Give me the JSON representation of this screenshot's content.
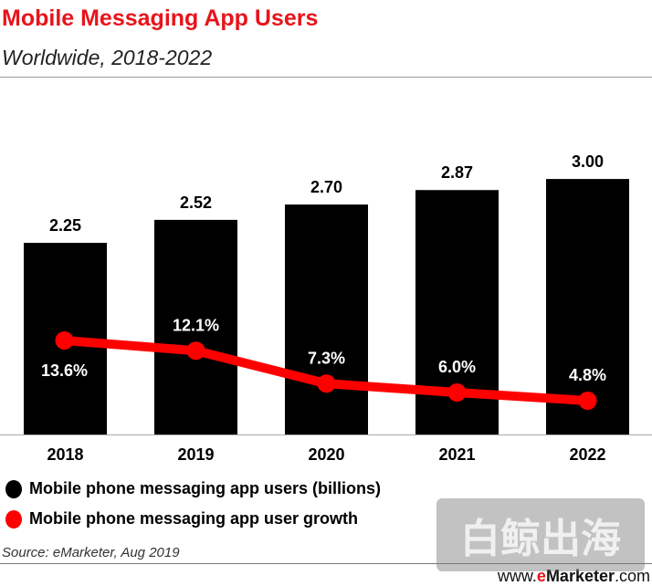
{
  "header": {
    "title": "Mobile Messaging App Users",
    "subtitle": "Worldwide, 2018-2022"
  },
  "chart_data": {
    "type": "bar+line",
    "categories": [
      "2018",
      "2019",
      "2020",
      "2021",
      "2022"
    ],
    "series": [
      {
        "name": "Mobile phone messaging app users (billions)",
        "type": "bar",
        "values": [
          2.25,
          2.52,
          2.7,
          2.87,
          3.0
        ],
        "labels": [
          "2.25",
          "2.52",
          "2.70",
          "2.87",
          "3.00"
        ],
        "color": "#000000"
      },
      {
        "name": "Mobile phone messaging app user growth",
        "type": "line",
        "values": [
          13.6,
          12.1,
          7.3,
          6.0,
          4.8
        ],
        "labels": [
          "13.6%",
          "12.1%",
          "7.3%",
          "6.0%",
          "4.8%"
        ],
        "color": "#ff0000"
      }
    ],
    "grid": false,
    "legend": "bottom-left"
  },
  "legend": [
    {
      "label": "Mobile phone messaging app users (billions)",
      "color": "#000000"
    },
    {
      "label": "Mobile phone messaging app user growth",
      "color": "#ff0000"
    }
  ],
  "footer": {
    "source": "Source: eMarketer, Aug 2019",
    "site_prefix": "www.",
    "site_e": "e",
    "site_brand": "Marketer",
    "site_suffix": ".com"
  },
  "watermark": "白鲸出海"
}
